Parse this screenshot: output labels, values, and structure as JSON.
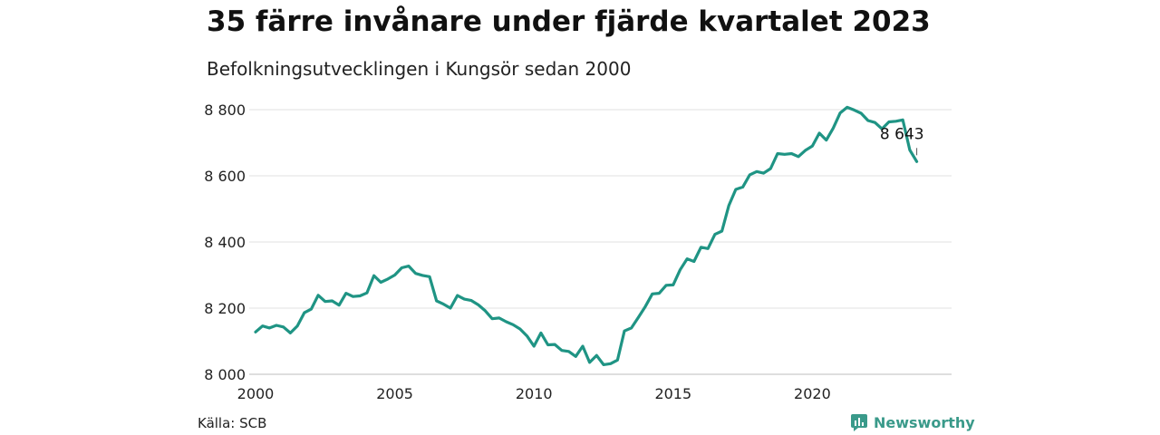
{
  "header": {
    "title": "35 färre invånare under fjärde kvartalet 2023",
    "subtitle": "Befolkningsutvecklingen i Kungsör sedan 2000"
  },
  "footer": {
    "source": "Källa: SCB",
    "brand": "Newsworthy",
    "brand_color": "#3a9a8a"
  },
  "chart_data": {
    "type": "line",
    "title": "35 färre invånare under fjärde kvartalet 2023",
    "subtitle": "Befolkningsutvecklingen i Kungsör sedan 2000",
    "xlabel": "",
    "ylabel": "",
    "xlim": [
      2000,
      2025
    ],
    "ylim": [
      8000,
      8800
    ],
    "x_ticks": [
      2000,
      2005,
      2010,
      2015,
      2020
    ],
    "x_tick_labels": [
      "2000",
      "2005",
      "2010",
      "2015",
      "2020"
    ],
    "y_ticks": [
      8000,
      8200,
      8400,
      8600,
      8800
    ],
    "y_tick_labels": [
      "8 000",
      "8 200",
      "8 400",
      "8 600",
      "8 800"
    ],
    "grid": "horizontal",
    "line_color": "#1f9484",
    "annotation": {
      "x": 2023.75,
      "y": 8643,
      "label": "8 643"
    },
    "series": [
      {
        "x": [
          2000.0,
          2000.25,
          2000.5,
          2000.75,
          2001.0,
          2001.25,
          2001.5,
          2001.75,
          2002.0,
          2002.25,
          2002.5,
          2002.75,
          2003.0,
          2003.25,
          2003.5,
          2003.75,
          2004.0,
          2004.25,
          2004.5,
          2004.75,
          2005.0,
          2005.25,
          2005.5,
          2005.75,
          2006.0,
          2006.25,
          2006.5,
          2006.75,
          2007.0,
          2007.25,
          2007.5,
          2007.75,
          2008.0,
          2008.25,
          2008.5,
          2008.75,
          2009.0,
          2009.25,
          2009.5,
          2009.75,
          2010.0,
          2010.25,
          2010.5,
          2010.75,
          2011.0,
          2011.25,
          2011.5,
          2011.75,
          2012.0,
          2012.25,
          2012.5,
          2012.75,
          2013.0,
          2013.25,
          2013.5,
          2013.75,
          2014.0,
          2014.25,
          2014.5,
          2014.75,
          2015.0,
          2015.25,
          2015.5,
          2015.75,
          2016.0,
          2016.25,
          2016.5,
          2016.75,
          2017.0,
          2017.25,
          2017.5,
          2017.75,
          2018.0,
          2018.25,
          2018.5,
          2018.75,
          2019.0,
          2019.25,
          2019.5,
          2019.75,
          2020.0,
          2020.25,
          2020.5,
          2020.75,
          2021.0,
          2021.25,
          2021.5,
          2021.75,
          2022.0,
          2022.25,
          2022.5,
          2022.75,
          2023.0,
          2023.25,
          2023.5,
          2023.75
        ],
        "values": [
          8128,
          8146,
          8140,
          8148,
          8143,
          8125,
          8146,
          8186,
          8197,
          8239,
          8220,
          8222,
          8209,
          8245,
          8235,
          8237,
          8246,
          8298,
          8278,
          8288,
          8300,
          8322,
          8327,
          8305,
          8299,
          8295,
          8222,
          8212,
          8200,
          8238,
          8227,
          8223,
          8210,
          8192,
          8168,
          8170,
          8159,
          8150,
          8137,
          8116,
          8085,
          8125,
          8089,
          8090,
          8072,
          8069,
          8054,
          8085,
          8036,
          8057,
          8029,
          8032,
          8043,
          8131,
          8140,
          8172,
          8205,
          8243,
          8245,
          8269,
          8270,
          8316,
          8349,
          8341,
          8384,
          8380,
          8423,
          8433,
          8510,
          8559,
          8566,
          8603,
          8613,
          8608,
          8622,
          8667,
          8665,
          8667,
          8658,
          8677,
          8690,
          8729,
          8708,
          8744,
          8790,
          8807,
          8799,
          8789,
          8767,
          8761,
          8742,
          8763,
          8765,
          8769,
          8678,
          8643
        ]
      }
    ]
  }
}
